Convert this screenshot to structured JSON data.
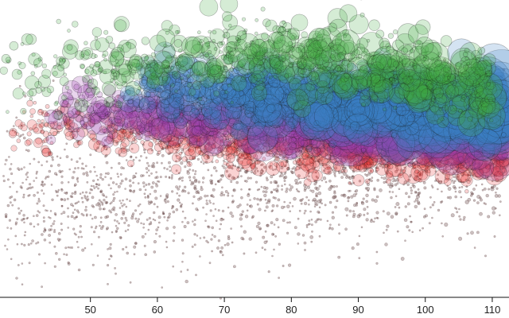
{
  "chart_data": {
    "type": "scatter",
    "title": "",
    "xlabel": "",
    "ylabel": "",
    "xlim": [
      36.5,
      112.5
    ],
    "ylim": [
      0,
      100
    ],
    "x_ticks": [
      {
        "value": 50,
        "label": "50"
      },
      {
        "value": 60,
        "label": "60"
      },
      {
        "value": 70,
        "label": "70"
      },
      {
        "value": 80,
        "label": "80"
      },
      {
        "value": 90,
        "label": "90"
      },
      {
        "value": 100,
        "label": "100"
      },
      {
        "value": 110,
        "label": "110"
      }
    ],
    "grid": false,
    "legend": "none",
    "series": [
      {
        "color": "#6b4a4a",
        "approx_count": 4000,
        "x_range": [
          37,
          112
        ],
        "y_center_at_x": [
          [
            45,
            32
          ],
          [
            60,
            35
          ],
          [
            80,
            40
          ],
          [
            100,
            45
          ],
          [
            112,
            48
          ]
        ],
        "y_spread": 12,
        "size_range": [
          1,
          2
        ]
      },
      {
        "color": "#e83030",
        "approx_count": 1800,
        "x_range": [
          38,
          112
        ],
        "y_center_at_x": [
          [
            40,
            58
          ],
          [
            60,
            55
          ],
          [
            80,
            50
          ],
          [
            100,
            48
          ],
          [
            112,
            48
          ]
        ],
        "y_spread": 4,
        "size_range": [
          2,
          10
        ]
      },
      {
        "color": "#9b3fae",
        "approx_count": 1500,
        "x_range": [
          44,
          112
        ],
        "y_center_at_x": [
          [
            48,
            63
          ],
          [
            65,
            61
          ],
          [
            80,
            58
          ],
          [
            100,
            56
          ],
          [
            112,
            55
          ]
        ],
        "y_spread": 4,
        "size_range": [
          3,
          22
        ]
      },
      {
        "color": "#3d7fc4",
        "approx_count": 1700,
        "x_range": [
          55,
          112
        ],
        "y_center_at_x": [
          [
            60,
            70
          ],
          [
            75,
            68
          ],
          [
            90,
            66
          ],
          [
            100,
            64
          ],
          [
            112,
            62
          ]
        ],
        "y_spread": 5,
        "size_range": [
          3,
          25
        ]
      },
      {
        "color": "#3faa3f",
        "approx_count": 1400,
        "x_range": [
          37,
          110
        ],
        "y_center_at_x": [
          [
            40,
            76
          ],
          [
            55,
            78
          ],
          [
            70,
            82
          ],
          [
            85,
            80
          ],
          [
            100,
            74
          ],
          [
            110,
            72
          ]
        ],
        "y_spread": 6,
        "size_range": [
          2,
          14
        ]
      }
    ]
  }
}
